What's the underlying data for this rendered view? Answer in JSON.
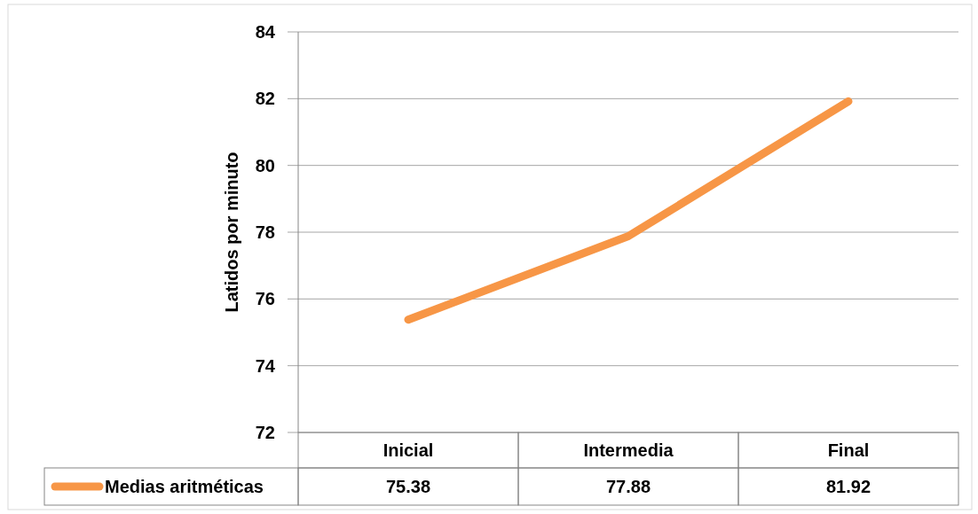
{
  "chart_data": {
    "type": "line",
    "ylabel": "Latidos por minuto",
    "categories": [
      "Inicial",
      "Intermedia",
      "Final"
    ],
    "series": [
      {
        "name": "Medias aritméticas",
        "color": "#f79646",
        "values": [
          75.38,
          77.88,
          81.92
        ]
      }
    ],
    "ylim": [
      72,
      84
    ],
    "yticks": [
      72,
      74,
      76,
      78,
      80,
      82,
      84
    ],
    "grid": "y",
    "legend": "bottom",
    "data_labels": true,
    "marker": "none",
    "line_style": "solid"
  }
}
